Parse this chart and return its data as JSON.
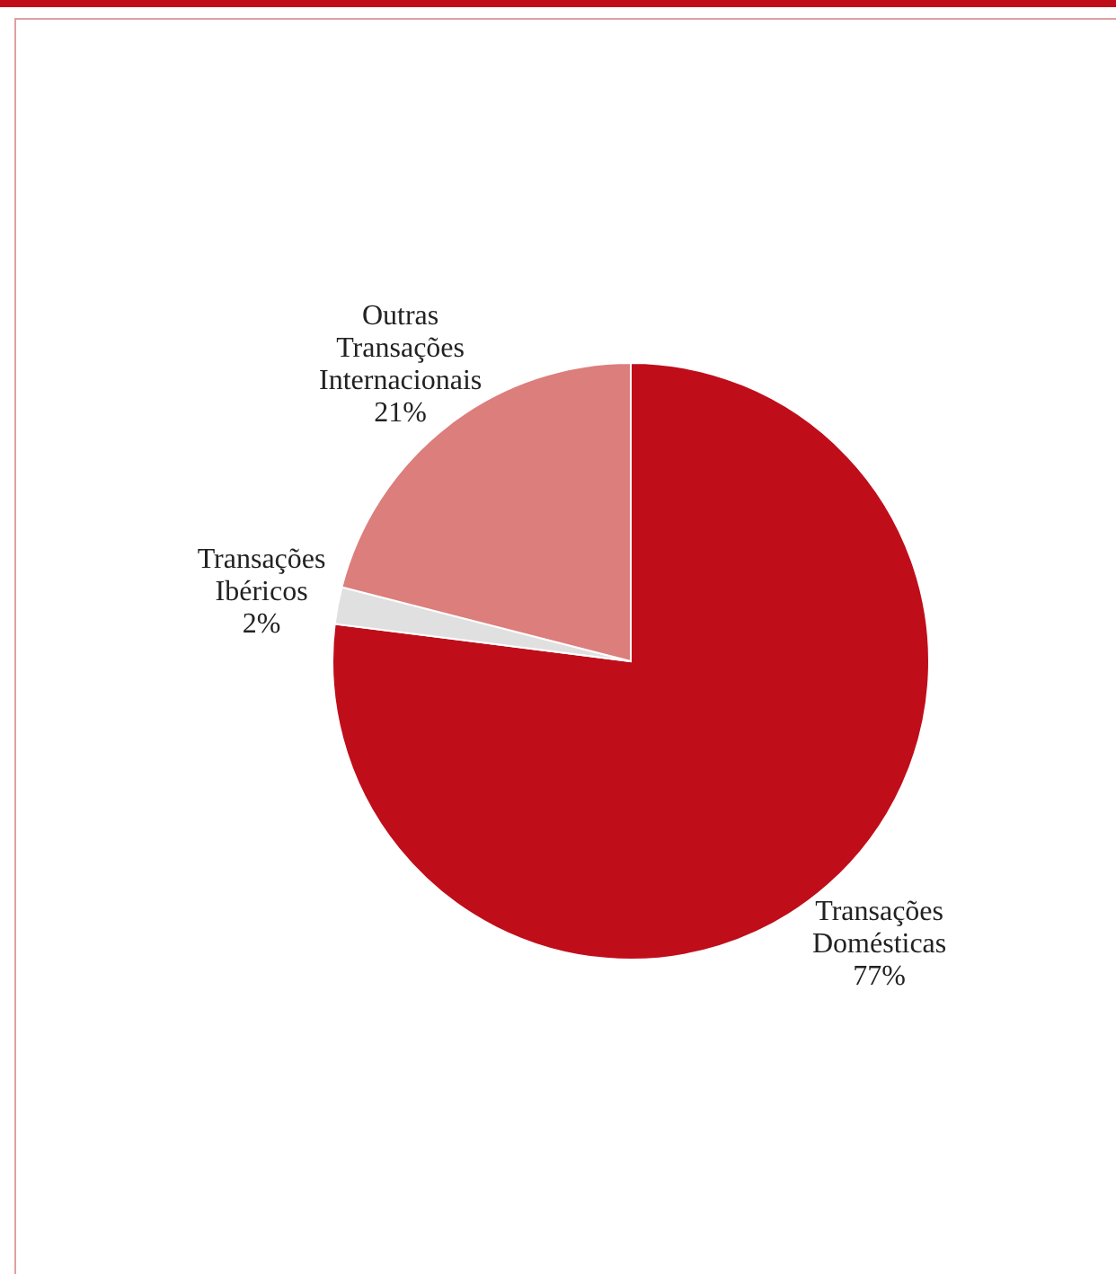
{
  "chart_data": {
    "type": "pie",
    "categories": [
      "Transações Domésticas",
      "Transações Ibéricos",
      "Outras Transações Internacionais"
    ],
    "values": [
      77,
      2,
      21
    ],
    "colors": [
      "#c00d1a",
      "#e0e0e0",
      "#dc7e7c"
    ],
    "value_labels": [
      "77%",
      "2%",
      "21%"
    ],
    "legend": false
  }
}
